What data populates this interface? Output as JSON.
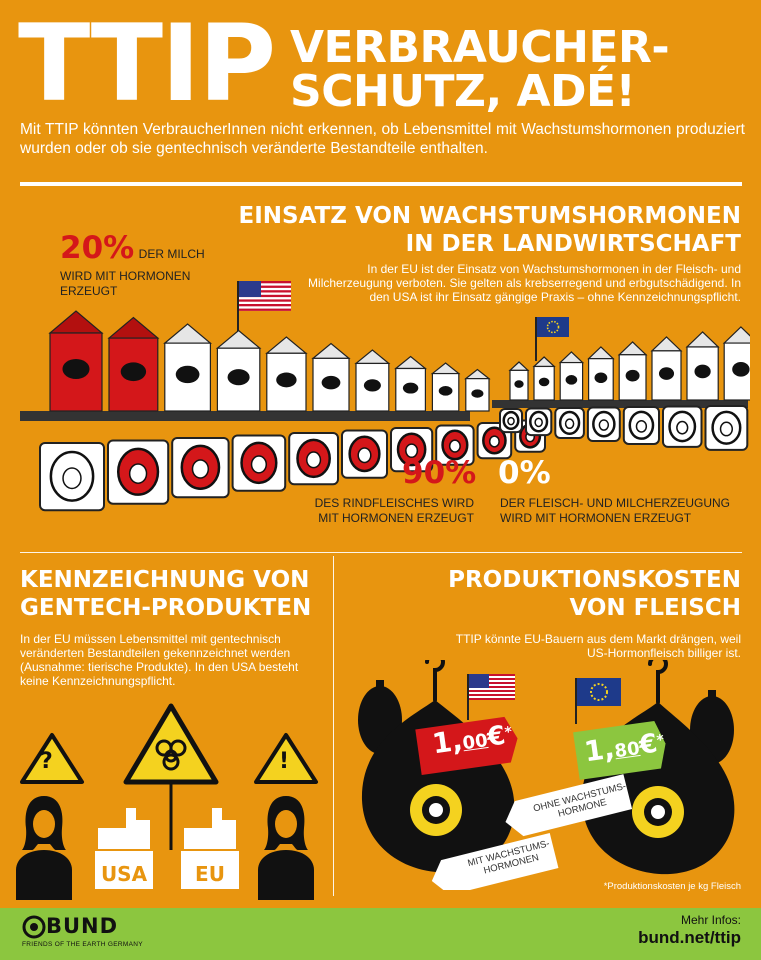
{
  "header": {
    "title": "TTIP",
    "subtitle_line1": "VERBRAUCHER-",
    "subtitle_line2": "SCHUTZ, ADÉ!",
    "intro": "Mit TTIP könnten VerbraucherInnen nicht erkennen, ob Lebensmittel mit Wachstumshormonen produziert wurden oder ob sie gentechnisch veränderte Bestandteile enthalten."
  },
  "hormones": {
    "heading_line1": "EINSATZ VON WACHSTUMSHORMONEN",
    "heading_line2": "IN DER LANDWIRTSCHAFT",
    "body": "In der EU ist der Einsatz von Wachstumshormonen in der Fleisch- und Milcherzeugung verboten. Sie gelten als krebserregend und erbgutschädigend. In den USA ist ihr Einsatz gängige Praxis – ohne Kennzeichnungspflicht.",
    "stat_milk_value": "20%",
    "stat_milk_text_1": "DER MILCH",
    "stat_milk_text_2": "WIRD MIT HORMONEN",
    "stat_milk_text_3": "ERZEUGT",
    "stat_milk_fraction": 0.2,
    "stat_beef_value": "90%",
    "stat_beef_text_1": "DES RINDFLEISCHES WIRD",
    "stat_beef_text_2": "MIT HORMONEN ERZEUGT",
    "stat_beef_fraction": 0.9,
    "stat_eu_value": "0%",
    "stat_eu_text_1": "DER FLEISCH- UND MILCHERZEUGUNG",
    "stat_eu_text_2": "WIRD MIT HORMONEN ERZEUGT",
    "stat_eu_fraction": 0.0
  },
  "labeling": {
    "heading_line1": "KENNZEICHNUNG VON",
    "heading_line2": "GENTECH-PRODUKTEN",
    "body": "In der EU müssen Lebensmittel mit gentechnisch veränderten Bestandteilen gekennzeichnet werden (Ausnahme: tierische Produkte). In den USA besteht keine Kennzeichnungspflicht.",
    "box_usa": "USA",
    "box_eu": "EU",
    "question_mark": "?",
    "exclamation_mark": "!"
  },
  "costs": {
    "heading_line1": "PRODUKTIONSKOSTEN",
    "heading_line2": "VON FLEISCH",
    "body": "TTIP könnte EU-Bauern aus dem Markt drängen, weil US-Hormonfleisch billiger ist.",
    "price_us_main": "1,",
    "price_us_cents": "00",
    "price_eu_main": "1,",
    "price_eu_cents": "80",
    "currency": "€",
    "asterisk": "*",
    "tag_us_1": "MIT WACHSTUMS-",
    "tag_us_2": "HORMONEN",
    "tag_eu_1": "OHNE WACHSTUMS-",
    "tag_eu_2": "HORMONE",
    "footnote": "*Produktionskosten je kg Fleisch"
  },
  "footer": {
    "logo_text": "BUND",
    "logo_sub": "FRIENDS OF THE EARTH GERMANY",
    "more_info": "Mehr Infos:",
    "url": "bund.net/ttip"
  },
  "colors": {
    "background": "#e8950f",
    "red": "#d4171a",
    "green_footer": "#8cc63f",
    "price_us_bg": "#d4171a",
    "price_eu_bg": "#8cc63f"
  }
}
